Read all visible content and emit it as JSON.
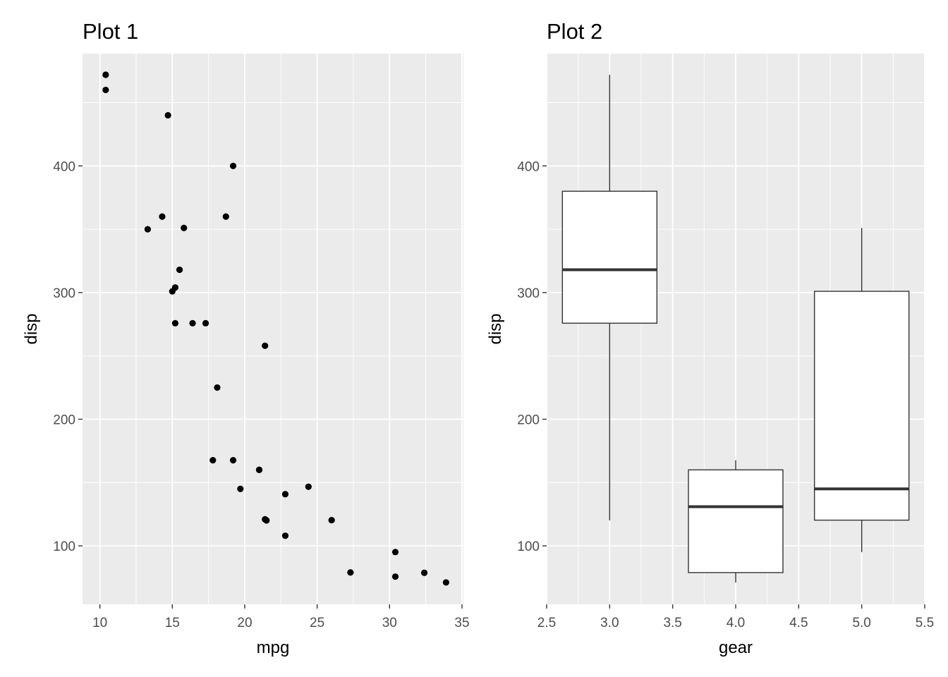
{
  "chart_data": [
    {
      "type": "scatter",
      "title": "Plot 1",
      "xlabel": "mpg",
      "ylabel": "disp",
      "xlim": [
        8.8,
        35.1
      ],
      "ylim": [
        53.8,
        488.7
      ],
      "xticks": [
        10,
        15,
        20,
        25,
        30,
        35
      ],
      "xtick_labels": [
        "10",
        "15",
        "20",
        "25",
        "30",
        "35"
      ],
      "yticks": [
        100,
        200,
        300,
        400
      ],
      "ytick_labels": [
        "100",
        "200",
        "300",
        "400"
      ],
      "grid": true,
      "point_color": "#000000",
      "points": [
        {
          "x": 21.0,
          "y": 160
        },
        {
          "x": 21.0,
          "y": 160
        },
        {
          "x": 22.8,
          "y": 108
        },
        {
          "x": 21.4,
          "y": 258
        },
        {
          "x": 18.7,
          "y": 360
        },
        {
          "x": 18.1,
          "y": 225
        },
        {
          "x": 14.3,
          "y": 360
        },
        {
          "x": 24.4,
          "y": 146.7
        },
        {
          "x": 22.8,
          "y": 140.8
        },
        {
          "x": 19.2,
          "y": 167.6
        },
        {
          "x": 17.8,
          "y": 167.6
        },
        {
          "x": 16.4,
          "y": 275.8
        },
        {
          "x": 17.3,
          "y": 275.8
        },
        {
          "x": 15.2,
          "y": 275.8
        },
        {
          "x": 10.4,
          "y": 472
        },
        {
          "x": 10.4,
          "y": 460
        },
        {
          "x": 14.7,
          "y": 440
        },
        {
          "x": 32.4,
          "y": 78.7
        },
        {
          "x": 30.4,
          "y": 75.7
        },
        {
          "x": 33.9,
          "y": 71.1
        },
        {
          "x": 21.5,
          "y": 120.1
        },
        {
          "x": 15.5,
          "y": 318
        },
        {
          "x": 15.2,
          "y": 304
        },
        {
          "x": 13.3,
          "y": 350
        },
        {
          "x": 19.2,
          "y": 400
        },
        {
          "x": 27.3,
          "y": 79
        },
        {
          "x": 26.0,
          "y": 120.3
        },
        {
          "x": 30.4,
          "y": 95.1
        },
        {
          "x": 15.8,
          "y": 351
        },
        {
          "x": 19.7,
          "y": 145
        },
        {
          "x": 15.0,
          "y": 301
        },
        {
          "x": 21.4,
          "y": 121
        }
      ]
    },
    {
      "type": "box",
      "title": "Plot 2",
      "xlabel": "gear",
      "ylabel": "disp",
      "xlim": [
        2.5,
        5.5
      ],
      "ylim": [
        53.8,
        488.7
      ],
      "xticks": [
        2.5,
        3.0,
        3.5,
        4.0,
        4.5,
        5.0,
        5.5
      ],
      "xtick_labels": [
        "2.5",
        "3.0",
        "3.5",
        "4.0",
        "4.5",
        "5.0",
        "5.5"
      ],
      "yticks": [
        100,
        200,
        300,
        400
      ],
      "ytick_labels": [
        "100",
        "200",
        "300",
        "400"
      ],
      "grid": true,
      "box_width": 0.75,
      "boxes": [
        {
          "x": 3,
          "min": 120.1,
          "q1": 275.8,
          "median": 318,
          "q3": 380,
          "max": 472
        },
        {
          "x": 4,
          "min": 71.1,
          "q1": 78.9,
          "median": 130.9,
          "q3": 160,
          "max": 167.6
        },
        {
          "x": 5,
          "min": 95.1,
          "q1": 120.3,
          "median": 145,
          "q3": 301,
          "max": 351
        }
      ]
    }
  ]
}
